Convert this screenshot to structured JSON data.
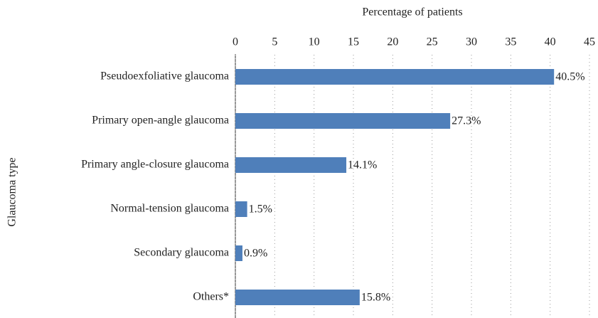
{
  "chart_data": {
    "type": "barh",
    "x_label": "Percentage of patients",
    "y_label": "Glaucoma type",
    "categories": [
      "Pseudoexfoliative glaucoma",
      "Primary open-angle glaucoma",
      "Primary angle-closure glaucoma",
      "Normal-tension glaucoma",
      "Secondary glaucoma",
      "Others*"
    ],
    "values": [
      40.5,
      27.3,
      14.1,
      1.5,
      0.9,
      15.8
    ],
    "value_labels": [
      "40.5%",
      "27.3%",
      "14.1%",
      "1.5%",
      "0.9%",
      "15.8%"
    ],
    "color": "#4f7fba",
    "xlim": [
      0,
      45
    ],
    "xticks": [
      0,
      5,
      10,
      15,
      20,
      25,
      30,
      35,
      40,
      45
    ],
    "grid": true
  }
}
